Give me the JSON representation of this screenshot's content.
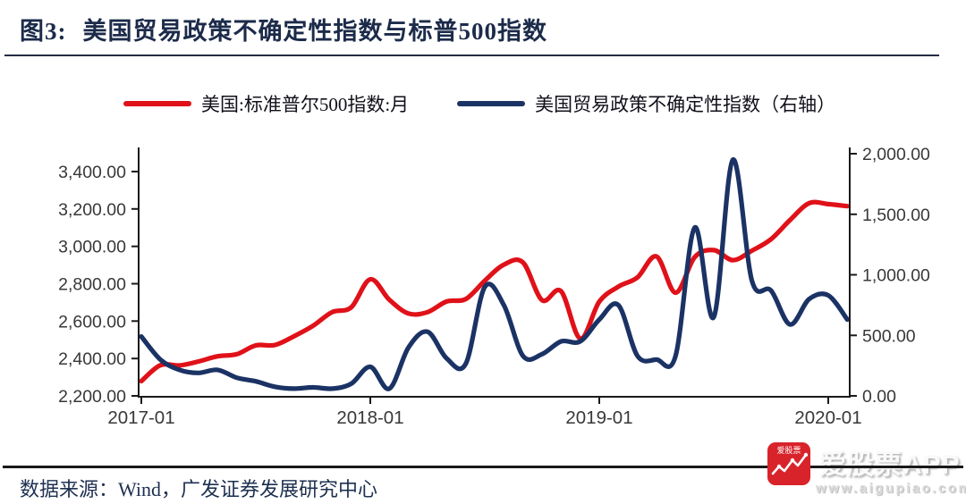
{
  "figure": {
    "label": "图3:",
    "title": "美国贸易政策不确定性指数与标普500指数"
  },
  "legend": [
    {
      "label": "美国:标准普尔500指数:月",
      "color": "#e01119"
    },
    {
      "label": "美国贸易政策不确定性指数（右轴）",
      "color": "#1b3264"
    }
  ],
  "source": {
    "text": "数据来源：Wind，广发证券发展研究中心"
  },
  "watermark": {
    "app_name": "爱股票APP",
    "url": "www.aigupiao.com",
    "icon_text": "爱股票",
    "icon_color": "#d8232a"
  },
  "chart_data": {
    "type": "line",
    "title": "美国贸易政策不确定性指数与标普500指数",
    "x": [
      "2017-01",
      "2017-02",
      "2017-03",
      "2017-04",
      "2017-05",
      "2017-06",
      "2017-07",
      "2017-08",
      "2017-09",
      "2017-10",
      "2017-11",
      "2017-12",
      "2018-01",
      "2018-02",
      "2018-03",
      "2018-04",
      "2018-05",
      "2018-06",
      "2018-07",
      "2018-08",
      "2018-09",
      "2018-10",
      "2018-11",
      "2018-12",
      "2019-01",
      "2019-02",
      "2019-03",
      "2019-04",
      "2019-05",
      "2019-06",
      "2019-07",
      "2019-08",
      "2019-09",
      "2019-10",
      "2019-11",
      "2019-12",
      "2020-01",
      "2020-02"
    ],
    "x_ticks": [
      {
        "index": 0,
        "label": "2017-01"
      },
      {
        "index": 12,
        "label": "2018-01"
      },
      {
        "index": 24,
        "label": "2019-01"
      },
      {
        "index": 36,
        "label": "2020-01"
      }
    ],
    "series": [
      {
        "name": "美国:标准普尔500指数:月",
        "axis": "left",
        "color": "#e01119",
        "values": [
          2279,
          2364,
          2363,
          2384,
          2412,
          2423,
          2470,
          2472,
          2519,
          2575,
          2648,
          2674,
          2824,
          2714,
          2641,
          2648,
          2705,
          2718,
          2816,
          2902,
          2914,
          2712,
          2760,
          2507,
          2704,
          2784,
          2834,
          2946,
          2752,
          2942,
          2980,
          2926,
          2977,
          3038,
          3141,
          3231,
          3226,
          3215
        ]
      },
      {
        "name": "美国贸易政策不确定性指数（右轴）",
        "axis": "right",
        "color": "#1b3264",
        "values": [
          490,
          300,
          215,
          190,
          215,
          150,
          120,
          75,
          60,
          70,
          60,
          100,
          240,
          60,
          400,
          530,
          310,
          265,
          900,
          750,
          330,
          345,
          450,
          450,
          630,
          750,
          330,
          300,
          330,
          1390,
          650,
          1950,
          950,
          870,
          590,
          800,
          830,
          630
        ]
      }
    ],
    "left_axis": {
      "min": 2200,
      "max": 3400,
      "tick_values": [
        2200,
        2400,
        2600,
        2800,
        3000,
        3200,
        3400
      ],
      "tick_labels": [
        "2,200.00",
        "2,400.00",
        "2,600.00",
        "2,800.00",
        "3,000.00",
        "3,200.00",
        "3,400.00"
      ]
    },
    "right_axis": {
      "min": 0,
      "max": 2000,
      "tick_values": [
        0,
        500,
        1000,
        1500,
        2000
      ],
      "tick_labels": [
        "0.00",
        "500.00",
        "1,000.00",
        "1,500.00",
        "2,000.00"
      ]
    },
    "grid": false,
    "legend_position": "top"
  }
}
